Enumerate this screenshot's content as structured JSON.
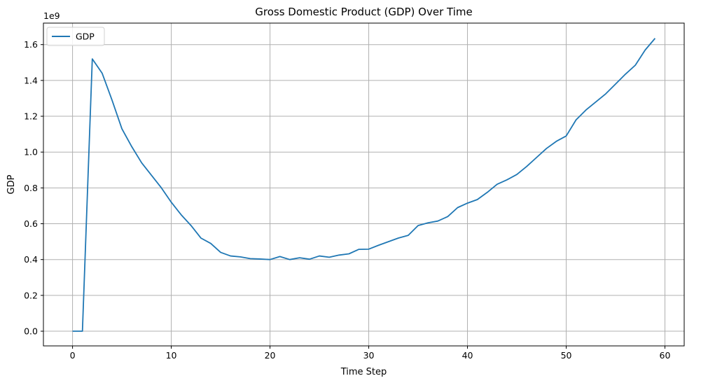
{
  "chart_data": {
    "type": "line",
    "title": "Gross Domestic Product (GDP) Over Time",
    "xlabel": "Time Step",
    "ylabel": "GDP",
    "y_offset_text": "1e9",
    "xlim": [
      -2.95,
      61.95
    ],
    "ylim": [
      -0.082,
      1.72
    ],
    "xticks": [
      0,
      10,
      20,
      30,
      40,
      50,
      60
    ],
    "xtick_labels": [
      "0",
      "10",
      "20",
      "30",
      "40",
      "50",
      "60"
    ],
    "yticks": [
      0.0,
      0.2,
      0.4,
      0.6,
      0.8,
      1.0,
      1.2,
      1.4,
      1.6
    ],
    "ytick_labels": [
      "0.0",
      "0.2",
      "0.4",
      "0.6",
      "0.8",
      "1.0",
      "1.2",
      "1.4",
      "1.6"
    ],
    "grid": true,
    "legend_position": "top-left",
    "series": [
      {
        "name": "GDP",
        "color": "#1f77b4",
        "x": [
          0,
          1,
          2,
          3,
          4,
          5,
          6,
          7,
          8,
          9,
          10,
          11,
          12,
          13,
          14,
          15,
          16,
          17,
          18,
          19,
          20,
          21,
          22,
          23,
          24,
          25,
          26,
          27,
          28,
          29,
          30,
          31,
          32,
          33,
          34,
          35,
          36,
          37,
          38,
          39,
          40,
          41,
          42,
          43,
          44,
          45,
          46,
          47,
          48,
          49,
          50,
          51,
          52,
          53,
          54,
          55,
          56,
          57,
          58,
          59
        ],
        "values": [
          0.0,
          0.0,
          1.52,
          1.44,
          1.29,
          1.13,
          1.03,
          0.94,
          0.87,
          0.8,
          0.72,
          0.65,
          0.59,
          0.52,
          0.49,
          0.44,
          0.42,
          0.415,
          0.405,
          0.403,
          0.4,
          0.417,
          0.4,
          0.41,
          0.402,
          0.42,
          0.413,
          0.425,
          0.432,
          0.457,
          0.458,
          0.48,
          0.5,
          0.52,
          0.535,
          0.59,
          0.605,
          0.615,
          0.64,
          0.69,
          0.715,
          0.735,
          0.775,
          0.82,
          0.845,
          0.875,
          0.92,
          0.97,
          1.02,
          1.06,
          1.09,
          1.18,
          1.235,
          1.28,
          1.325,
          1.38,
          1.435,
          1.485,
          1.57,
          1.635
        ]
      }
    ]
  }
}
